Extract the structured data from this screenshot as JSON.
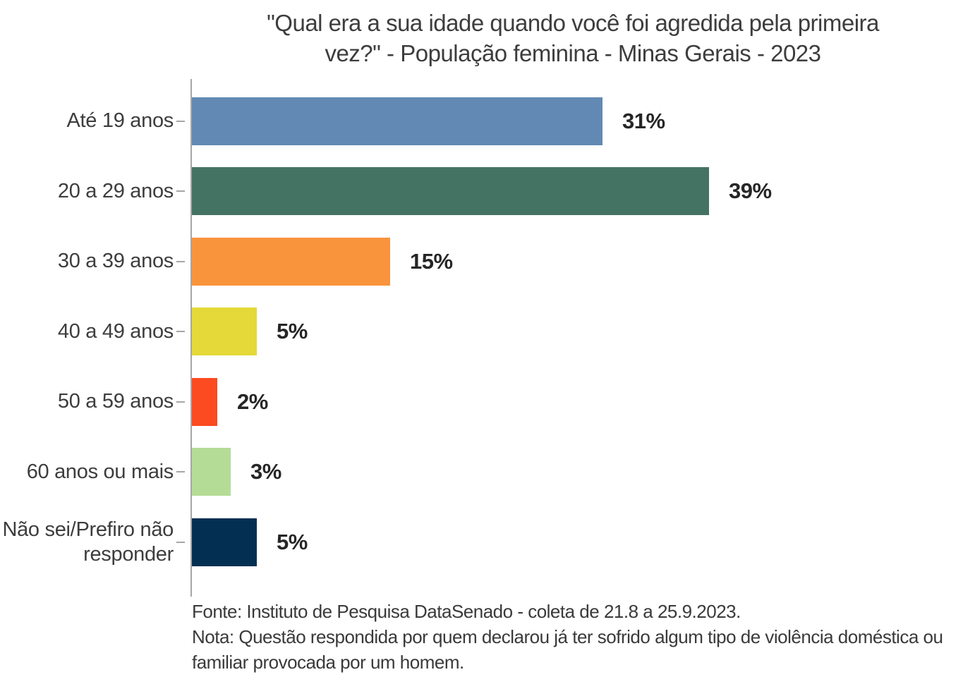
{
  "title": {
    "line1": "\"Qual era a sua idade quando você foi agredida pela primeira",
    "line2": "vez?\" - População feminina - Minas Gerais - 2023"
  },
  "chart_data": {
    "type": "bar",
    "orientation": "horizontal",
    "title": "\"Qual era a sua idade quando você foi agredida pela primeira vez?\" - População feminina - Minas Gerais - 2023",
    "categories": [
      "Até 19 anos",
      "20 a 29 anos",
      "30 a 39 anos",
      "40 a 49 anos",
      "50 a 59 anos",
      "60 anos ou mais",
      "Não sei/Prefiro não responder"
    ],
    "values": [
      31,
      39,
      15,
      5,
      2,
      3,
      5
    ],
    "value_labels": [
      "31%",
      "39%",
      "15%",
      "5%",
      "2%",
      "3%",
      "5%"
    ],
    "bar_colors": [
      "#6289B3",
      "#447363",
      "#F9943D",
      "#E4D938",
      "#FC4A21",
      "#B5DC97",
      "#032F52"
    ],
    "unit": "%",
    "xlim": [
      0,
      42
    ],
    "grid": false,
    "legend": false,
    "value_label_position": "right-of-bar",
    "axis_color": "#A6A6A6"
  },
  "footer": {
    "fonte": "Fonte: Instituto de Pesquisa DataSenado - coleta de 21.8 a 25.9.2023.",
    "nota": "Nota: Questão respondida por quem declarou já ter sofrido algum tipo de violência doméstica ou familiar provocada por um homem."
  },
  "colors": {
    "background": "#FFFFFF",
    "title_text": "#3D3D3D",
    "category_text": "#3D3D3D",
    "value_text": "#262626",
    "axis": "#A6A6A6"
  }
}
